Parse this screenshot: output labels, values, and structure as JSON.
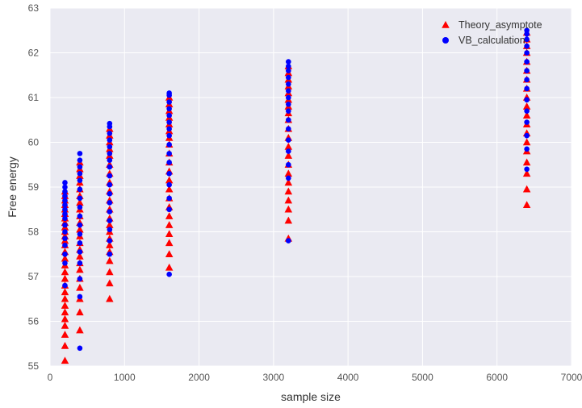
{
  "chart_data": {
    "type": "scatter",
    "xlabel": "sample size",
    "ylabel": "Free energy",
    "xlim": [
      0,
      7000
    ],
    "ylim": [
      55,
      63
    ],
    "xticks": [
      0,
      1000,
      2000,
      3000,
      4000,
      5000,
      6000,
      7000
    ],
    "yticks": [
      55,
      56,
      57,
      58,
      59,
      60,
      61,
      62,
      63
    ],
    "grid": true,
    "legend_position": "top-right",
    "colors": {
      "background": "#eaeaf2",
      "grid": "#ffffff"
    },
    "series": [
      {
        "name": "Theory_asymptote",
        "marker": "triangle",
        "color": "#ff0000",
        "points": [
          [
            200,
            55.12
          ],
          [
            200,
            55.45
          ],
          [
            200,
            55.7
          ],
          [
            200,
            55.9
          ],
          [
            200,
            56.05
          ],
          [
            200,
            56.2
          ],
          [
            200,
            56.35
          ],
          [
            200,
            56.5
          ],
          [
            200,
            56.65
          ],
          [
            200,
            56.8
          ],
          [
            200,
            56.95
          ],
          [
            200,
            57.1
          ],
          [
            200,
            57.25
          ],
          [
            200,
            57.4
          ],
          [
            200,
            57.55
          ],
          [
            200,
            57.7
          ],
          [
            200,
            57.8
          ],
          [
            200,
            57.9
          ],
          [
            200,
            58.0
          ],
          [
            200,
            58.1
          ],
          [
            200,
            58.2
          ],
          [
            200,
            58.3
          ],
          [
            200,
            58.4
          ],
          [
            200,
            58.5
          ],
          [
            200,
            58.6
          ],
          [
            200,
            58.7
          ],
          [
            200,
            58.8
          ],
          [
            200,
            58.9
          ],
          [
            400,
            55.8
          ],
          [
            400,
            56.2
          ],
          [
            400,
            56.5
          ],
          [
            400,
            56.75
          ],
          [
            400,
            56.95
          ],
          [
            400,
            57.15
          ],
          [
            400,
            57.3
          ],
          [
            400,
            57.45
          ],
          [
            400,
            57.6
          ],
          [
            400,
            57.75
          ],
          [
            400,
            57.9
          ],
          [
            400,
            58.05
          ],
          [
            400,
            58.2
          ],
          [
            400,
            58.35
          ],
          [
            400,
            58.5
          ],
          [
            400,
            58.65
          ],
          [
            400,
            58.8
          ],
          [
            400,
            58.95
          ],
          [
            400,
            59.1
          ],
          [
            400,
            59.25
          ],
          [
            400,
            59.4
          ],
          [
            400,
            59.55
          ],
          [
            800,
            56.5
          ],
          [
            800,
            56.85
          ],
          [
            800,
            57.1
          ],
          [
            800,
            57.35
          ],
          [
            800,
            57.55
          ],
          [
            800,
            57.7
          ],
          [
            800,
            57.85
          ],
          [
            800,
            58.0
          ],
          [
            800,
            58.15
          ],
          [
            800,
            58.3
          ],
          [
            800,
            58.5
          ],
          [
            800,
            58.7
          ],
          [
            800,
            58.9
          ],
          [
            800,
            59.1
          ],
          [
            800,
            59.3
          ],
          [
            800,
            59.5
          ],
          [
            800,
            59.7
          ],
          [
            800,
            59.85
          ],
          [
            800,
            60.0
          ],
          [
            800,
            60.15
          ],
          [
            800,
            60.3
          ],
          [
            1600,
            57.2
          ],
          [
            1600,
            57.5
          ],
          [
            1600,
            57.75
          ],
          [
            1600,
            57.95
          ],
          [
            1600,
            58.15
          ],
          [
            1600,
            58.35
          ],
          [
            1600,
            58.55
          ],
          [
            1600,
            58.75
          ],
          [
            1600,
            58.95
          ],
          [
            1600,
            59.15
          ],
          [
            1600,
            59.35
          ],
          [
            1600,
            59.55
          ],
          [
            1600,
            59.75
          ],
          [
            1600,
            59.95
          ],
          [
            1600,
            60.1
          ],
          [
            1600,
            60.25
          ],
          [
            1600,
            60.4
          ],
          [
            1600,
            60.55
          ],
          [
            1600,
            60.7
          ],
          [
            1600,
            60.85
          ],
          [
            1600,
            61.0
          ],
          [
            3200,
            57.85
          ],
          [
            3200,
            58.25
          ],
          [
            3200,
            58.5
          ],
          [
            3200,
            58.7
          ],
          [
            3200,
            58.9
          ],
          [
            3200,
            59.1
          ],
          [
            3200,
            59.3
          ],
          [
            3200,
            59.5
          ],
          [
            3200,
            59.7
          ],
          [
            3200,
            59.9
          ],
          [
            3200,
            60.1
          ],
          [
            3200,
            60.3
          ],
          [
            3200,
            60.5
          ],
          [
            3200,
            60.65
          ],
          [
            3200,
            60.8
          ],
          [
            3200,
            60.95
          ],
          [
            3200,
            61.1
          ],
          [
            3200,
            61.25
          ],
          [
            3200,
            61.4
          ],
          [
            3200,
            61.55
          ],
          [
            3200,
            61.7
          ],
          [
            6400,
            58.6
          ],
          [
            6400,
            58.95
          ],
          [
            6400,
            59.3
          ],
          [
            6400,
            59.55
          ],
          [
            6400,
            59.8
          ],
          [
            6400,
            60.0
          ],
          [
            6400,
            60.2
          ],
          [
            6400,
            60.4
          ],
          [
            6400,
            60.6
          ],
          [
            6400,
            60.8
          ],
          [
            6400,
            61.0
          ],
          [
            6400,
            61.2
          ],
          [
            6400,
            61.4
          ],
          [
            6400,
            61.6
          ],
          [
            6400,
            61.8
          ],
          [
            6400,
            62.0
          ],
          [
            6400,
            62.15
          ],
          [
            6400,
            62.3
          ],
          [
            6400,
            62.45
          ]
        ]
      },
      {
        "name": "VB_calculation",
        "marker": "circle",
        "color": "#0000ff",
        "points": [
          [
            200,
            56.8
          ],
          [
            200,
            57.3
          ],
          [
            200,
            57.5
          ],
          [
            200,
            57.7
          ],
          [
            200,
            57.85
          ],
          [
            200,
            58.0
          ],
          [
            200,
            58.15
          ],
          [
            200,
            58.3
          ],
          [
            200,
            58.4
          ],
          [
            200,
            58.5
          ],
          [
            200,
            58.6
          ],
          [
            200,
            58.7
          ],
          [
            200,
            58.8
          ],
          [
            200,
            58.9
          ],
          [
            200,
            59.0
          ],
          [
            200,
            59.1
          ],
          [
            400,
            55.4
          ],
          [
            400,
            56.55
          ],
          [
            400,
            56.95
          ],
          [
            400,
            57.3
          ],
          [
            400,
            57.55
          ],
          [
            400,
            57.75
          ],
          [
            400,
            57.95
          ],
          [
            400,
            58.15
          ],
          [
            400,
            58.35
          ],
          [
            400,
            58.55
          ],
          [
            400,
            58.75
          ],
          [
            400,
            58.95
          ],
          [
            400,
            59.15
          ],
          [
            400,
            59.3
          ],
          [
            400,
            59.45
          ],
          [
            400,
            59.6
          ],
          [
            400,
            59.75
          ],
          [
            800,
            57.5
          ],
          [
            800,
            57.8
          ],
          [
            800,
            58.05
          ],
          [
            800,
            58.25
          ],
          [
            800,
            58.45
          ],
          [
            800,
            58.65
          ],
          [
            800,
            58.85
          ],
          [
            800,
            59.05
          ],
          [
            800,
            59.25
          ],
          [
            800,
            59.45
          ],
          [
            800,
            59.6
          ],
          [
            800,
            59.75
          ],
          [
            800,
            59.9
          ],
          [
            800,
            60.05
          ],
          [
            800,
            60.2
          ],
          [
            800,
            60.35
          ],
          [
            800,
            60.42
          ],
          [
            1600,
            57.05
          ],
          [
            1600,
            58.5
          ],
          [
            1600,
            58.75
          ],
          [
            1600,
            59.05
          ],
          [
            1600,
            59.3
          ],
          [
            1600,
            59.55
          ],
          [
            1600,
            59.75
          ],
          [
            1600,
            59.95
          ],
          [
            1600,
            60.15
          ],
          [
            1600,
            60.3
          ],
          [
            1600,
            60.45
          ],
          [
            1600,
            60.6
          ],
          [
            1600,
            60.75
          ],
          [
            1600,
            60.9
          ],
          [
            1600,
            61.05
          ],
          [
            1600,
            61.1
          ],
          [
            3200,
            57.8
          ],
          [
            3200,
            59.2
          ],
          [
            3200,
            59.5
          ],
          [
            3200,
            59.8
          ],
          [
            3200,
            60.05
          ],
          [
            3200,
            60.3
          ],
          [
            3200,
            60.5
          ],
          [
            3200,
            60.7
          ],
          [
            3200,
            60.85
          ],
          [
            3200,
            61.0
          ],
          [
            3200,
            61.15
          ],
          [
            3200,
            61.3
          ],
          [
            3200,
            61.45
          ],
          [
            3200,
            61.6
          ],
          [
            3200,
            61.7
          ],
          [
            3200,
            61.8
          ],
          [
            6400,
            59.4
          ],
          [
            6400,
            59.85
          ],
          [
            6400,
            60.15
          ],
          [
            6400,
            60.45
          ],
          [
            6400,
            60.7
          ],
          [
            6400,
            60.95
          ],
          [
            6400,
            61.2
          ],
          [
            6400,
            61.4
          ],
          [
            6400,
            61.6
          ],
          [
            6400,
            61.8
          ],
          [
            6400,
            62.0
          ],
          [
            6400,
            62.15
          ],
          [
            6400,
            62.3
          ],
          [
            6400,
            62.42
          ],
          [
            6400,
            62.5
          ]
        ]
      }
    ]
  }
}
